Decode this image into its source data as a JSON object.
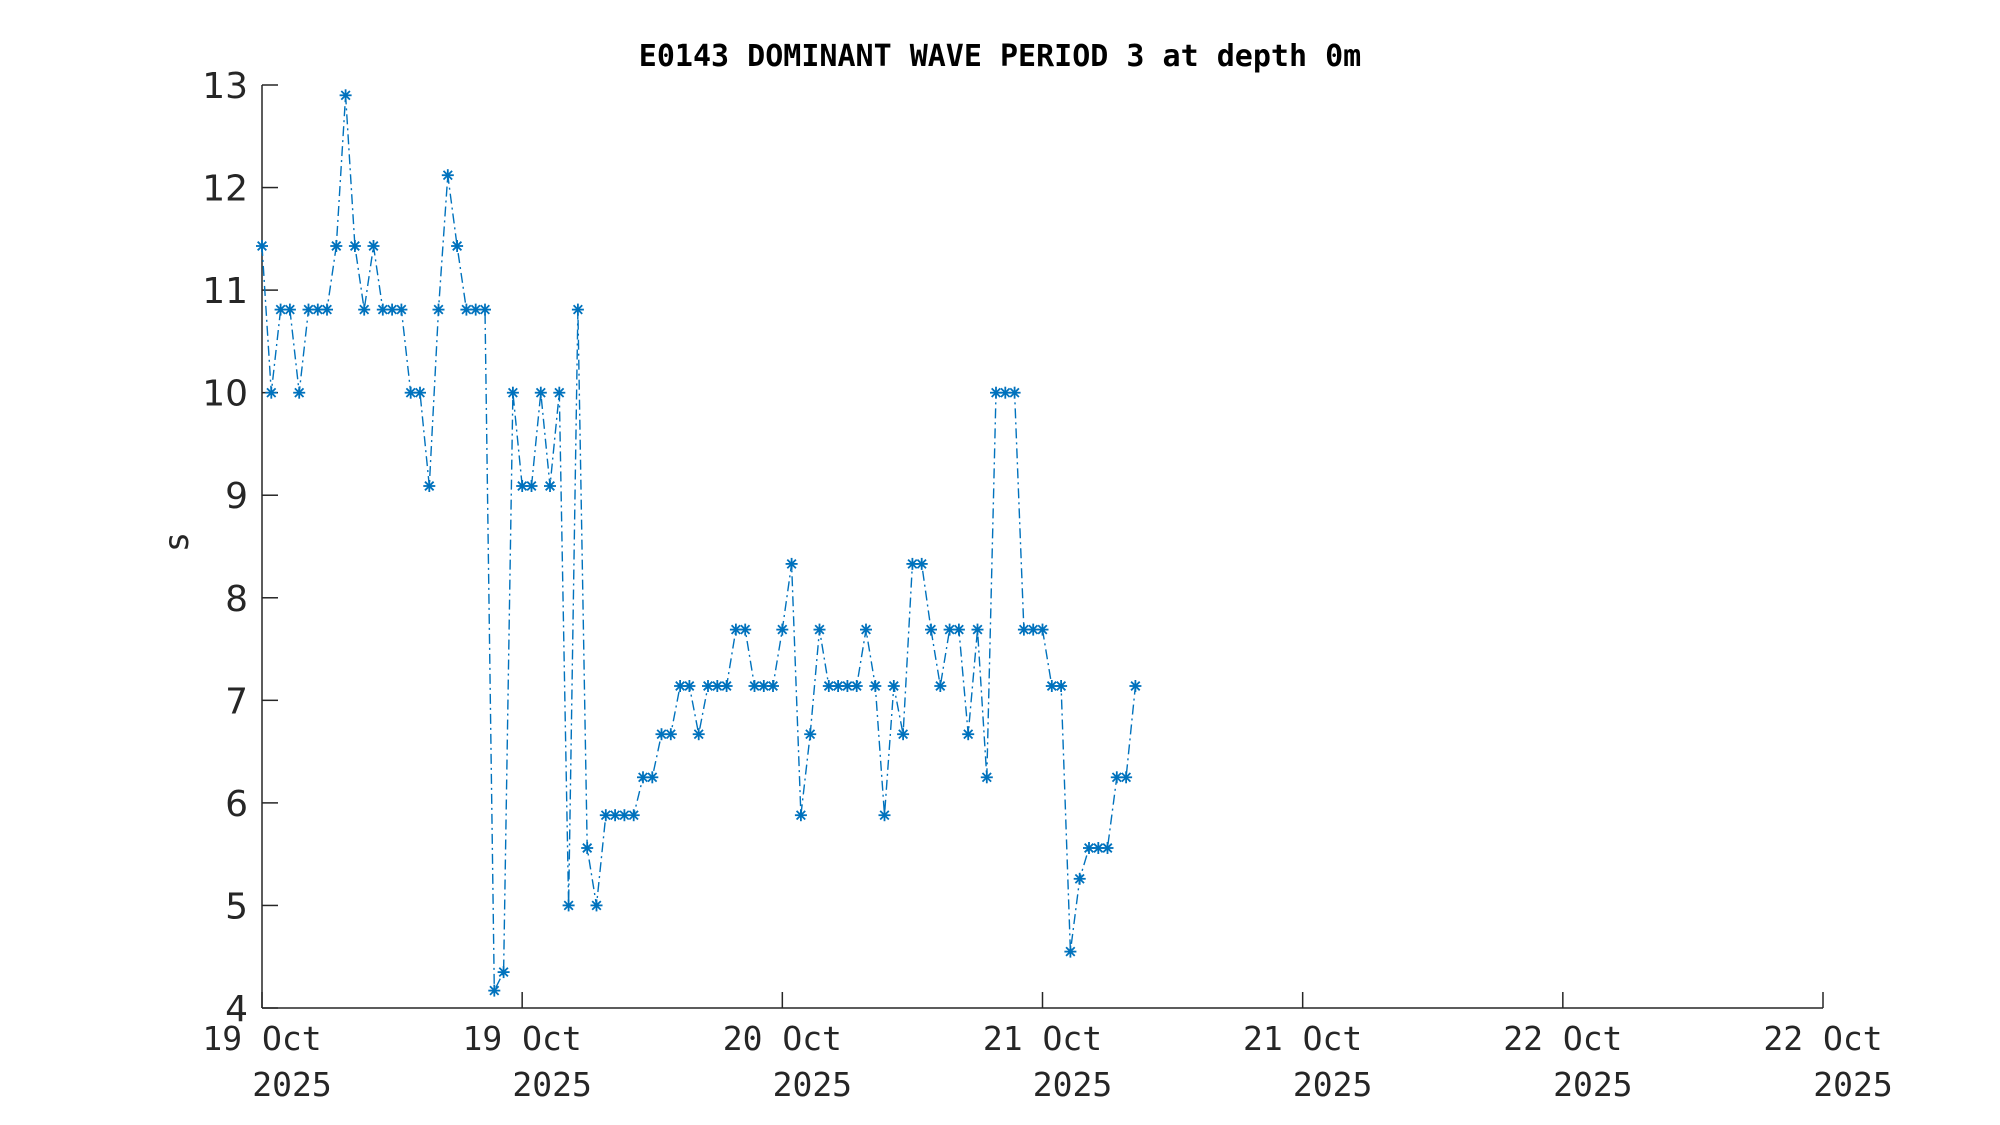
{
  "chart_data": {
    "type": "line",
    "title": "E0143 DOMINANT WAVE PERIOD 3 at depth 0m",
    "ylabel": "s",
    "ylim": [
      4,
      13
    ],
    "yticks": [
      4,
      5,
      6,
      7,
      8,
      9,
      10,
      11,
      12,
      13
    ],
    "xlim": [
      "2025-10-19T00:00",
      "2025-10-22T12:00"
    ],
    "xticks": [
      {
        "line1": "19 Oct",
        "line2": "2025"
      },
      {
        "line1": "19 Oct",
        "line2": "2025"
      },
      {
        "line1": "20 Oct",
        "line2": "2025"
      },
      {
        "line1": "21 Oct",
        "line2": "2025"
      },
      {
        "line1": "21 Oct",
        "line2": "2025"
      },
      {
        "line1": "22 Oct",
        "line2": "2025"
      },
      {
        "line1": "22 Oct",
        "line2": "2025"
      }
    ],
    "grid": false,
    "marker": "asterisk",
    "line_style": "dash-dot",
    "color": "#0072BD",
    "series": [
      {
        "x": [
          "2025-10-19T00:00",
          "2025-10-19T00:30",
          "2025-10-19T01:00",
          "2025-10-19T01:30",
          "2025-10-19T02:00",
          "2025-10-19T02:30",
          "2025-10-19T03:00",
          "2025-10-19T03:30",
          "2025-10-19T04:00",
          "2025-10-19T04:30",
          "2025-10-19T05:00",
          "2025-10-19T05:30",
          "2025-10-19T06:00",
          "2025-10-19T06:30",
          "2025-10-19T07:00",
          "2025-10-19T07:30",
          "2025-10-19T08:00",
          "2025-10-19T08:30",
          "2025-10-19T09:00",
          "2025-10-19T09:30",
          "2025-10-19T10:00",
          "2025-10-19T10:30",
          "2025-10-19T11:00",
          "2025-10-19T11:30",
          "2025-10-19T12:00",
          "2025-10-19T12:30",
          "2025-10-19T13:00",
          "2025-10-19T13:30",
          "2025-10-19T14:00",
          "2025-10-19T14:30",
          "2025-10-19T15:00",
          "2025-10-19T15:30",
          "2025-10-19T16:00",
          "2025-10-19T16:30",
          "2025-10-19T17:00",
          "2025-10-19T17:30",
          "2025-10-19T18:00",
          "2025-10-19T18:30",
          "2025-10-19T19:00",
          "2025-10-19T19:30",
          "2025-10-19T20:00",
          "2025-10-19T20:30",
          "2025-10-19T21:00",
          "2025-10-19T21:30",
          "2025-10-19T22:00",
          "2025-10-19T22:30",
          "2025-10-19T23:00",
          "2025-10-19T23:30",
          "2025-10-20T00:00",
          "2025-10-20T00:30",
          "2025-10-20T01:00",
          "2025-10-20T01:30",
          "2025-10-20T02:00",
          "2025-10-20T02:30",
          "2025-10-20T03:00",
          "2025-10-20T03:30",
          "2025-10-20T04:00",
          "2025-10-20T04:30",
          "2025-10-20T05:00",
          "2025-10-20T05:30",
          "2025-10-20T06:00",
          "2025-10-20T06:30",
          "2025-10-20T07:00",
          "2025-10-20T07:30",
          "2025-10-20T08:00",
          "2025-10-20T08:30",
          "2025-10-20T09:00",
          "2025-10-20T09:30",
          "2025-10-20T10:00",
          "2025-10-20T10:30",
          "2025-10-20T11:00",
          "2025-10-20T11:30",
          "2025-10-20T12:00",
          "2025-10-20T12:30",
          "2025-10-20T13:00",
          "2025-10-20T13:30",
          "2025-10-20T14:00",
          "2025-10-20T14:30",
          "2025-10-20T15:00",
          "2025-10-20T15:30",
          "2025-10-20T16:00",
          "2025-10-20T16:30",
          "2025-10-20T17:00",
          "2025-10-20T17:30",
          "2025-10-20T18:00",
          "2025-10-20T18:30",
          "2025-10-20T19:00",
          "2025-10-20T19:30",
          "2025-10-20T20:00",
          "2025-10-20T20:30",
          "2025-10-20T21:00",
          "2025-10-20T21:30",
          "2025-10-20T22:00",
          "2025-10-20T22:30",
          "2025-10-20T23:00"
        ],
        "values": [
          11.43,
          10.0,
          10.81,
          10.81,
          10.0,
          10.81,
          10.81,
          10.81,
          11.43,
          12.9,
          11.43,
          10.81,
          11.43,
          10.81,
          10.81,
          10.81,
          10.0,
          10.0,
          9.09,
          10.81,
          12.12,
          11.43,
          10.81,
          10.81,
          10.81,
          4.17,
          4.35,
          10.0,
          9.09,
          9.09,
          10.0,
          9.09,
          10.0,
          5.0,
          10.81,
          5.56,
          5.0,
          5.88,
          5.88,
          5.88,
          5.88,
          6.25,
          6.25,
          6.67,
          6.67,
          7.14,
          7.14,
          6.67,
          7.14,
          7.14,
          7.14,
          7.69,
          7.69,
          7.14,
          7.14,
          7.14,
          7.69,
          8.33,
          5.88,
          6.67,
          7.69,
          7.14,
          7.14,
          7.14,
          7.14,
          7.69,
          7.14,
          5.88,
          7.14,
          6.67,
          8.33,
          8.33,
          7.69,
          7.14,
          7.69,
          7.69,
          6.67,
          7.69,
          6.25,
          10.0,
          10.0,
          10.0,
          7.69,
          7.69,
          7.69,
          7.14,
          7.14,
          4.55,
          5.26,
          5.56,
          5.56,
          5.56,
          6.25,
          6.25,
          7.14
        ]
      }
    ]
  }
}
